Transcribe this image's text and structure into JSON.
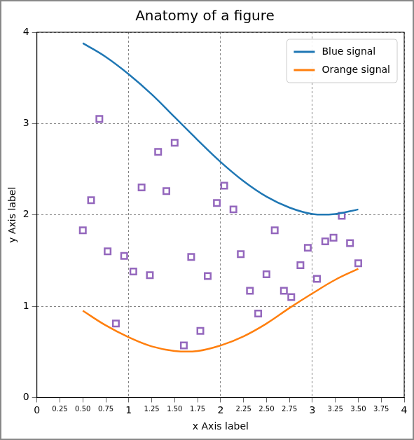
{
  "chart_data": {
    "type": "line",
    "title": "Anatomy of a figure",
    "x_label": "x Axis label",
    "y_label": "y Axis label",
    "xlim": [
      0,
      4
    ],
    "ylim": [
      0,
      4
    ],
    "xticks": [
      0,
      0.25,
      {
        "value": 0.5,
        "label": "0.50"
      },
      0.75,
      1,
      1.25,
      {
        "value": 1.5,
        "label": "1.50"
      },
      1.75,
      2,
      2.25,
      {
        "value": 2.5,
        "label": "2.50"
      },
      2.75,
      3,
      3.25,
      {
        "value": 3.5,
        "label": "3.50"
      },
      3.75,
      4
    ],
    "yticks": [
      0,
      1,
      2,
      3,
      4
    ],
    "grid": true,
    "legend": "upper right",
    "series": [
      {
        "name": "Blue signal",
        "type": "line",
        "color": "#1f77b4",
        "line_style": "solid",
        "x": [
          0.5,
          0.75,
          1.0,
          1.25,
          1.5,
          1.75,
          2.0,
          2.25,
          2.5,
          2.75,
          3.0,
          3.25,
          3.5
        ],
        "values": [
          3.88,
          3.73,
          3.54,
          3.32,
          3.07,
          2.82,
          2.58,
          2.37,
          2.2,
          2.08,
          2.01,
          2.01,
          2.06
        ]
      },
      {
        "name": "Orange signal",
        "type": "line",
        "color": "#ff7f0e",
        "line_style": "solid",
        "x": [
          0.5,
          0.75,
          1.0,
          1.25,
          1.5,
          1.75,
          2.0,
          2.25,
          2.5,
          2.75,
          3.0,
          3.25,
          3.5
        ],
        "values": [
          0.95,
          0.79,
          0.66,
          0.56,
          0.51,
          0.51,
          0.57,
          0.67,
          0.81,
          0.98,
          1.14,
          1.29,
          1.41
        ]
      },
      {
        "type": "scatter",
        "color": "#9467bd",
        "marker": "square",
        "x": [
          0.5,
          0.59,
          0.68,
          0.77,
          0.86,
          0.95,
          1.05,
          1.14,
          1.23,
          1.32,
          1.41,
          1.5,
          1.6,
          1.68,
          1.78,
          1.86,
          1.96,
          2.04,
          2.14,
          2.22,
          2.32,
          2.41,
          2.5,
          2.59,
          2.69,
          2.77,
          2.87,
          2.95,
          3.05,
          3.14,
          3.23,
          3.32,
          3.41,
          3.5
        ],
        "values": [
          1.83,
          2.16,
          3.05,
          1.6,
          0.81,
          1.55,
          1.38,
          2.3,
          1.34,
          2.69,
          2.26,
          2.79,
          0.57,
          1.54,
          0.73,
          1.33,
          2.13,
          2.32,
          2.06,
          1.57,
          1.17,
          0.92,
          1.35,
          1.83,
          1.17,
          1.1,
          1.45,
          1.64,
          1.3,
          1.71,
          1.75,
          1.99,
          1.69,
          1.47
        ]
      }
    ]
  }
}
